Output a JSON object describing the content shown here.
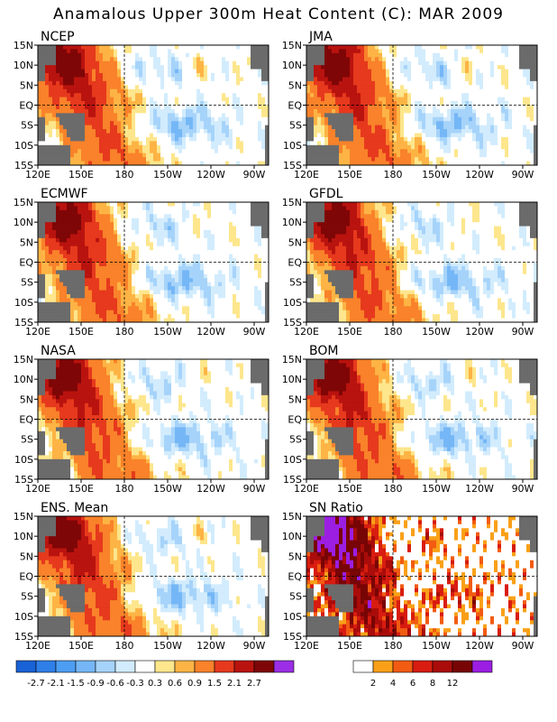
{
  "title": "Anamalous Upper 300m Heat Content (C): MAR 2009",
  "chart_data": {
    "type": "heatmap",
    "x_ticks": [
      "120E",
      "150E",
      "180",
      "150W",
      "120W",
      "90W"
    ],
    "y_ticks": [
      "15N",
      "10N",
      "5N",
      "EQ",
      "5S",
      "10S",
      "15S"
    ],
    "panels": [
      {
        "name": "NCEP",
        "field": "anomaly"
      },
      {
        "name": "JMA",
        "field": "anomaly"
      },
      {
        "name": "ECMWF",
        "field": "anomaly"
      },
      {
        "name": "GFDL",
        "field": "anomaly"
      },
      {
        "name": "NASA",
        "field": "anomaly"
      },
      {
        "name": "BOM",
        "field": "anomaly"
      },
      {
        "name": "ENS. Mean",
        "field": "anomaly"
      },
      {
        "name": "SN Ratio",
        "field": "snratio"
      }
    ],
    "anomaly_colorbar": {
      "labels": [
        "-2.7",
        "-2.1",
        "-1.5",
        "-0.9",
        "-0.6",
        "-0.3",
        "0.3",
        "0.6",
        "0.9",
        "1.5",
        "2.1",
        "2.7"
      ],
      "colors": [
        "#1862d6",
        "#2f7fe8",
        "#4d9ef2",
        "#75b7f6",
        "#a6d3fa",
        "#d2ecfd",
        "#ffffff",
        "#fde68c",
        "#fdb445",
        "#f9822a",
        "#e6391d",
        "#b9130f",
        "#7f0606",
        "#9b2ee6"
      ]
    },
    "snratio_colorbar": {
      "labels": [
        "2",
        "4",
        "6",
        "8",
        "12"
      ],
      "colors": [
        "#ffffff",
        "#f9a018",
        "#f25b12",
        "#d81c10",
        "#a90c0a",
        "#780505",
        "#9b1ee2"
      ]
    },
    "land_color": "#6b6b6b"
  }
}
